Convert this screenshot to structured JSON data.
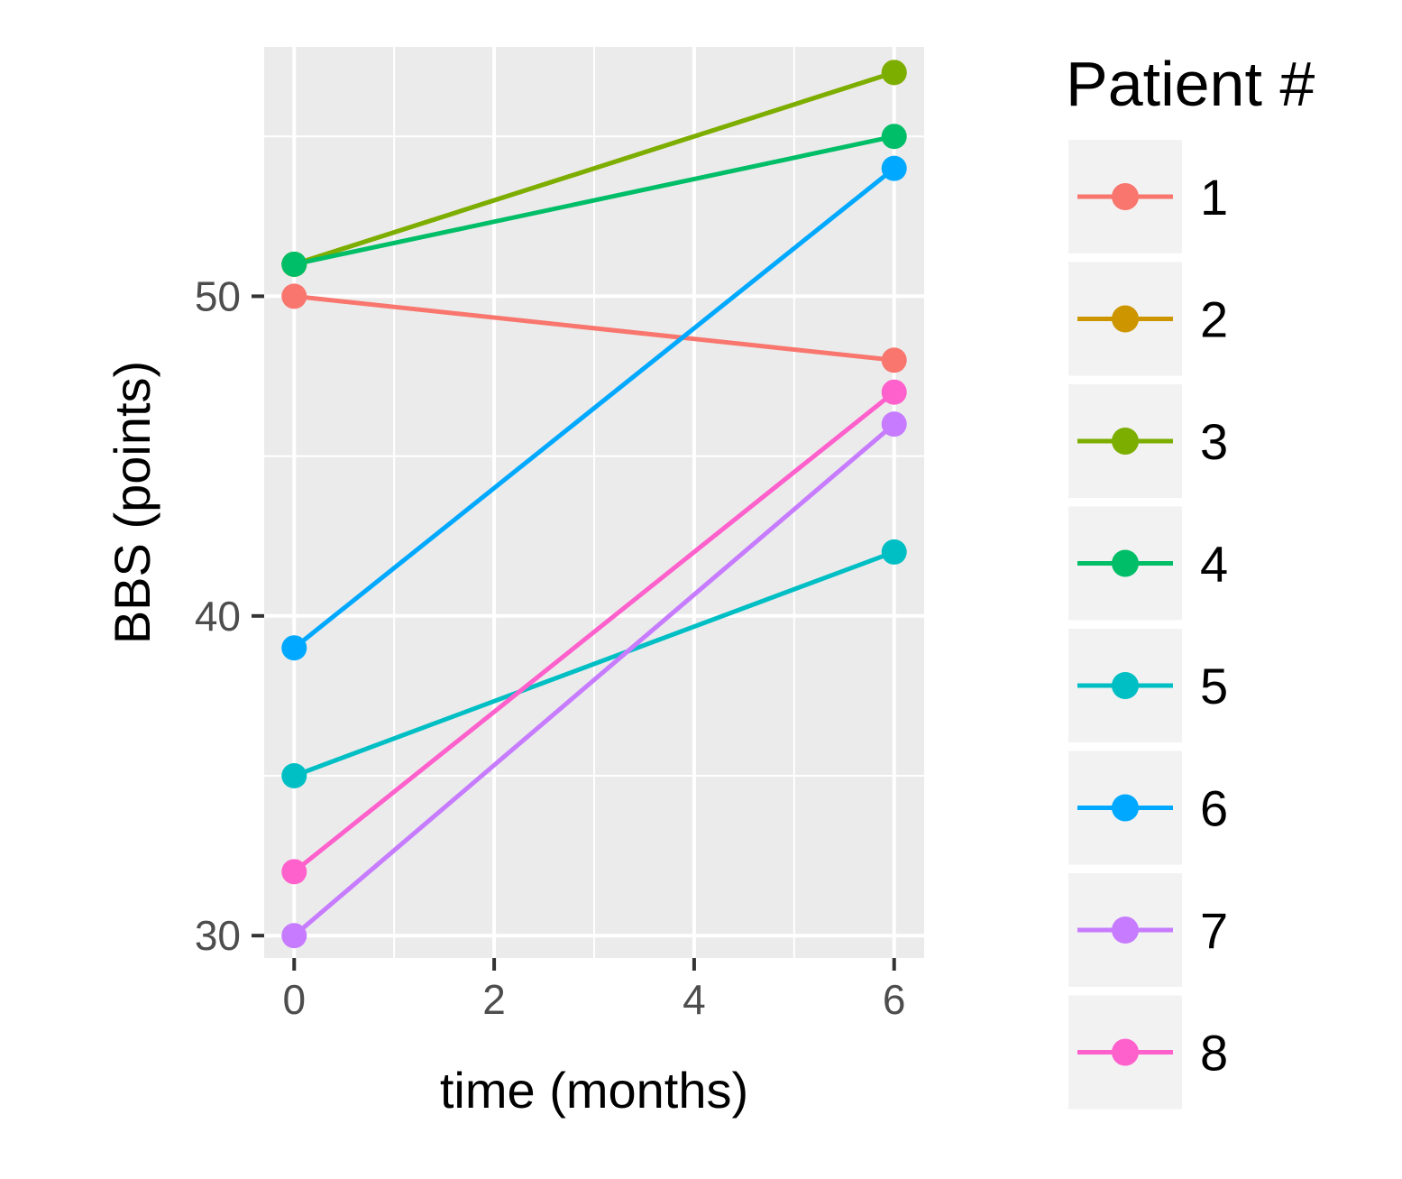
{
  "chart_data": {
    "type": "line",
    "title": "",
    "xlabel": "time (months)",
    "ylabel": "BBS (points)",
    "xlim": [
      -0.3,
      6.3
    ],
    "ylim": [
      29.3,
      57.8
    ],
    "xticks": [
      0,
      2,
      4,
      6
    ],
    "yticks": [
      30,
      40,
      50
    ],
    "grid": true,
    "legend": {
      "title": "Patient #",
      "position": "right"
    },
    "x": [
      0,
      6
    ],
    "series": [
      {
        "name": "1",
        "color": "#F8766D",
        "values": [
          50,
          48
        ]
      },
      {
        "name": "2",
        "color": "#CD9600",
        "values": [
          51,
          57
        ]
      },
      {
        "name": "3",
        "color": "#7CAE00",
        "values": [
          51,
          57
        ]
      },
      {
        "name": "4",
        "color": "#00BE67",
        "values": [
          51,
          55
        ]
      },
      {
        "name": "5",
        "color": "#00BFC4",
        "values": [
          35,
          42
        ]
      },
      {
        "name": "6",
        "color": "#00A9FF",
        "values": [
          39,
          54
        ]
      },
      {
        "name": "7",
        "color": "#C77CFF",
        "values": [
          30,
          46
        ]
      },
      {
        "name": "8",
        "color": "#FF61CC",
        "values": [
          32,
          47
        ]
      }
    ]
  }
}
